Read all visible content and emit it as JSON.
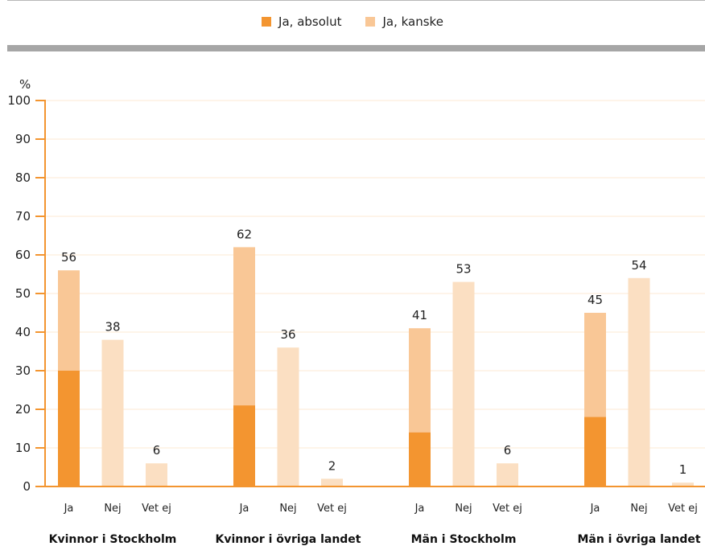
{
  "chart_data": {
    "type": "bar",
    "unit_label": "%",
    "ylim": [
      0,
      100
    ],
    "yticks": [
      0,
      10,
      20,
      30,
      40,
      50,
      60,
      70,
      80,
      90,
      100
    ],
    "legend": [
      {
        "name": "Ja, absolut",
        "color": "#f39530"
      },
      {
        "name": "Ja, kanske",
        "color": "#f9c796"
      }
    ],
    "colors": {
      "absolut": "#f39530",
      "kanske": "#f9c796",
      "other": "#fbdfc2",
      "axis": "#f39530",
      "grid": "#fde8d3"
    },
    "groups": [
      {
        "name": "Kvinnor i Stockholm",
        "bars": [
          {
            "label": "Ja",
            "total": 56,
            "absolut": 30
          },
          {
            "label": "Nej",
            "total": 38
          },
          {
            "label": "Vet ej",
            "total": 6
          }
        ]
      },
      {
        "name": "Kvinnor i övriga landet",
        "bars": [
          {
            "label": "Ja",
            "total": 62,
            "absolut": 21
          },
          {
            "label": "Nej",
            "total": 36
          },
          {
            "label": "Vet ej",
            "total": 2
          }
        ]
      },
      {
        "name": "Män i Stockholm",
        "bars": [
          {
            "label": "Ja",
            "total": 41,
            "absolut": 14
          },
          {
            "label": "Nej",
            "total": 53
          },
          {
            "label": "Vet ej",
            "total": 6
          }
        ]
      },
      {
        "name": "Män i övriga landet",
        "bars": [
          {
            "label": "Ja",
            "total": 45,
            "absolut": 18
          },
          {
            "label": "Nej",
            "total": 54
          },
          {
            "label": "Vet ej",
            "total": 1
          }
        ]
      }
    ]
  }
}
